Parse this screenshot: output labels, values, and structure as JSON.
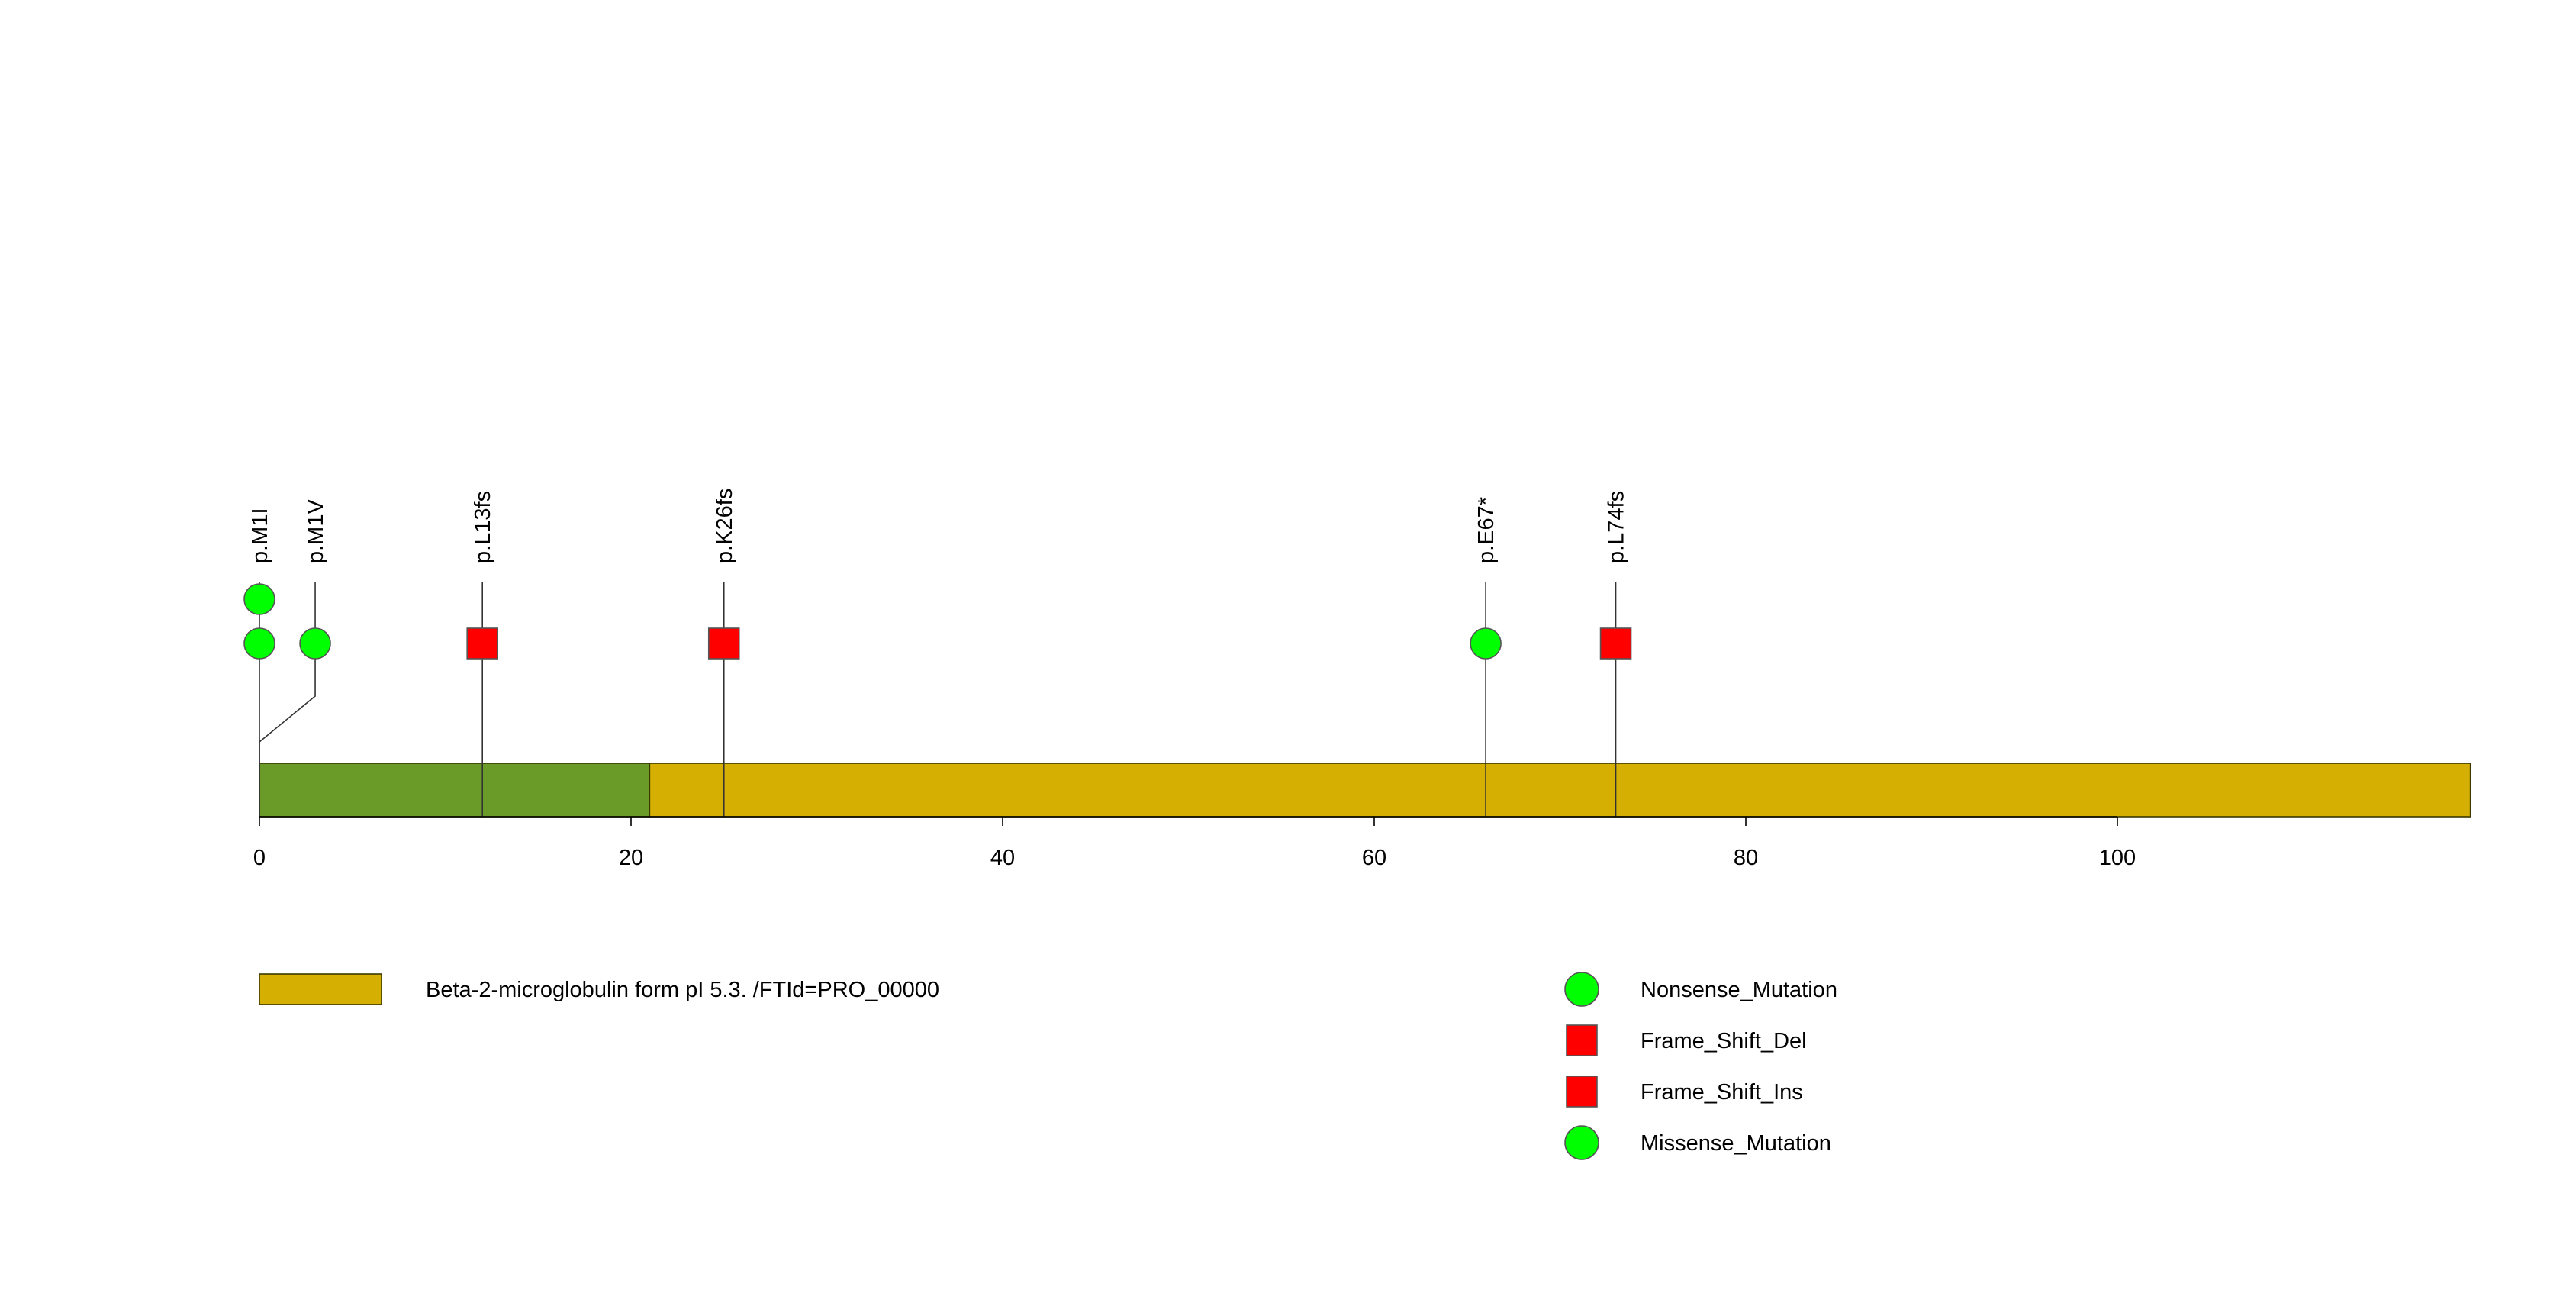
{
  "chart_data": {
    "type": "lollipop",
    "protein_length": 119,
    "x_ticks": [
      0,
      20,
      40,
      60,
      80,
      100
    ],
    "domains": [
      {
        "name": "",
        "start": 0,
        "end": 21,
        "color": "#6a9a27"
      },
      {
        "name": "Beta-2-microglobulin form pI 5.3. /FTId=PRO_00000",
        "start": 21,
        "end": 119,
        "color": "#d5b002"
      }
    ],
    "mutations": [
      {
        "label": "p.M1I",
        "position": 0,
        "anchor": 0,
        "stack": [
          {
            "type": "Nonsense_Mutation"
          },
          {
            "type": "Nonsense_Mutation"
          }
        ]
      },
      {
        "label": "p.M1V",
        "position": 3,
        "anchor": 0,
        "stack": [
          {
            "type": "Nonsense_Mutation"
          }
        ]
      },
      {
        "label": "p.L13fs",
        "position": 12,
        "anchor": 12,
        "stack": [
          {
            "type": "Frame_Shift_Del"
          }
        ]
      },
      {
        "label": "p.K26fs",
        "position": 25,
        "anchor": 25,
        "stack": [
          {
            "type": "Frame_Shift_Del"
          }
        ]
      },
      {
        "label": "p.E67*",
        "position": 66,
        "anchor": 66,
        "stack": [
          {
            "type": "Nonsense_Mutation"
          }
        ]
      },
      {
        "label": "p.L74fs",
        "position": 73,
        "anchor": 73,
        "stack": [
          {
            "type": "Frame_Shift_Del"
          }
        ]
      }
    ],
    "legend": [
      {
        "name": "Nonsense_Mutation",
        "shape": "circle",
        "color": "#00ff00"
      },
      {
        "name": "Frame_Shift_Del",
        "shape": "square",
        "color": "#ff0000"
      },
      {
        "name": "Frame_Shift_Ins",
        "shape": "square",
        "color": "#ff0000"
      },
      {
        "name": "Missense_Mutation",
        "shape": "circle",
        "color": "#00ff00"
      }
    ],
    "domain_legend": [
      {
        "name": "Beta-2-microglobulin form pI 5.3. /FTId=PRO_00000",
        "color": "#d5b002"
      }
    ]
  }
}
